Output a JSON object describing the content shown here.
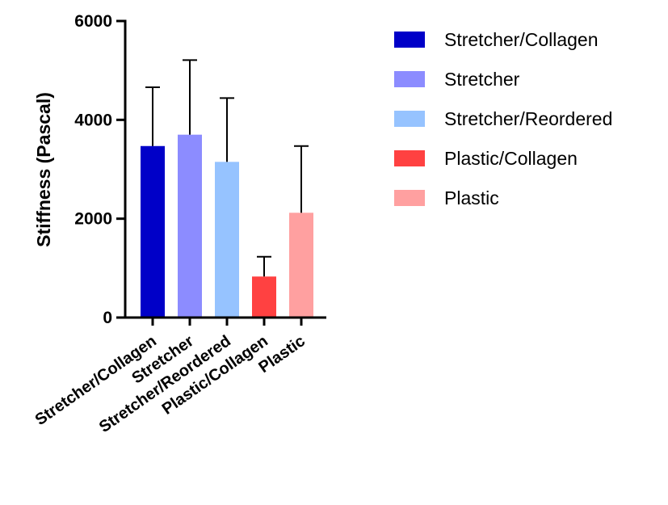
{
  "chart_data": {
    "type": "bar",
    "categories": [
      "Stretcher/Collagen",
      "Stretcher",
      "Stretcher/Reordered",
      "Plastic/Collagen",
      "Plastic"
    ],
    "values": [
      3470,
      3700,
      3150,
      830,
      2120
    ],
    "error_upper": [
      4660,
      5210,
      4440,
      1230,
      3470
    ],
    "colors": [
      "#0000c8",
      "#8c8cff",
      "#96c3ff",
      "#ff4141",
      "#ffa0a0"
    ],
    "ylabel": "Stiffness (Pascal)",
    "ylim": [
      0,
      6000
    ],
    "yticks": [
      "0",
      "2000",
      "4000",
      "6000"
    ],
    "ytick_values": [
      0,
      2000,
      4000,
      6000
    ],
    "legend": {
      "placement": "right",
      "entries": [
        "Stretcher/Collagen",
        "Stretcher",
        "Stretcher/Reordered",
        "Plastic/Collagen",
        "Plastic"
      ]
    },
    "grid": false
  }
}
